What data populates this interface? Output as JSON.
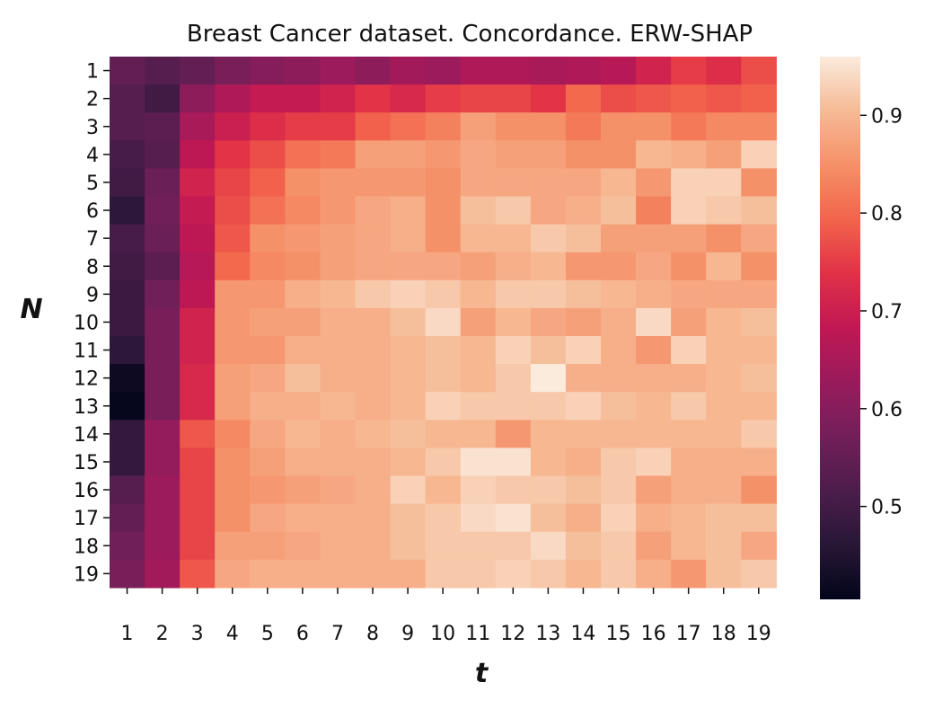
{
  "chart_data": {
    "type": "heatmap",
    "title": "Breast Cancer  dataset. Concordance.  ERW-SHAP",
    "xlabel": "t",
    "ylabel": "N",
    "x_categories": [
      "1",
      "2",
      "3",
      "4",
      "5",
      "6",
      "7",
      "8",
      "9",
      "10",
      "11",
      "12",
      "13",
      "14",
      "15",
      "16",
      "17",
      "18",
      "19"
    ],
    "y_categories": [
      "1",
      "2",
      "3",
      "4",
      "5",
      "6",
      "7",
      "8",
      "9",
      "10",
      "11",
      "12",
      "13",
      "14",
      "15",
      "16",
      "17",
      "18",
      "19"
    ],
    "colormap": "rocket",
    "colorbar": {
      "ticks": [
        0.5,
        0.6,
        0.7,
        0.8,
        0.9
      ],
      "tick_labels": [
        "0.5",
        "0.6",
        "0.7",
        "0.8",
        "0.9"
      ],
      "range": [
        0.405,
        0.96
      ]
    },
    "values": [
      [
        0.55,
        0.53,
        0.55,
        0.58,
        0.6,
        0.61,
        0.63,
        0.61,
        0.64,
        0.63,
        0.66,
        0.66,
        0.65,
        0.66,
        0.67,
        0.71,
        0.75,
        0.73,
        0.77
      ],
      [
        0.53,
        0.5,
        0.61,
        0.66,
        0.69,
        0.69,
        0.71,
        0.74,
        0.72,
        0.75,
        0.76,
        0.76,
        0.74,
        0.8,
        0.77,
        0.78,
        0.79,
        0.78,
        0.79
      ],
      [
        0.53,
        0.54,
        0.65,
        0.7,
        0.73,
        0.75,
        0.75,
        0.79,
        0.81,
        0.83,
        0.87,
        0.85,
        0.85,
        0.82,
        0.85,
        0.85,
        0.82,
        0.84,
        0.84
      ],
      [
        0.51,
        0.53,
        0.68,
        0.74,
        0.77,
        0.81,
        0.82,
        0.87,
        0.87,
        0.86,
        0.88,
        0.87,
        0.87,
        0.85,
        0.85,
        0.9,
        0.89,
        0.87,
        0.93
      ],
      [
        0.5,
        0.56,
        0.71,
        0.76,
        0.79,
        0.85,
        0.86,
        0.86,
        0.86,
        0.85,
        0.88,
        0.88,
        0.88,
        0.88,
        0.9,
        0.86,
        0.93,
        0.93,
        0.85
      ],
      [
        0.47,
        0.57,
        0.69,
        0.77,
        0.81,
        0.84,
        0.86,
        0.88,
        0.89,
        0.85,
        0.91,
        0.92,
        0.88,
        0.89,
        0.91,
        0.83,
        0.93,
        0.92,
        0.91
      ],
      [
        0.51,
        0.56,
        0.68,
        0.78,
        0.85,
        0.86,
        0.87,
        0.88,
        0.89,
        0.85,
        0.9,
        0.9,
        0.92,
        0.91,
        0.87,
        0.87,
        0.87,
        0.85,
        0.88
      ],
      [
        0.5,
        0.54,
        0.67,
        0.8,
        0.84,
        0.85,
        0.87,
        0.88,
        0.88,
        0.88,
        0.87,
        0.89,
        0.9,
        0.86,
        0.86,
        0.88,
        0.85,
        0.9,
        0.85
      ],
      [
        0.49,
        0.57,
        0.68,
        0.86,
        0.86,
        0.89,
        0.9,
        0.92,
        0.93,
        0.92,
        0.9,
        0.92,
        0.92,
        0.91,
        0.9,
        0.89,
        0.88,
        0.88,
        0.88
      ],
      [
        0.49,
        0.58,
        0.71,
        0.86,
        0.87,
        0.87,
        0.89,
        0.89,
        0.91,
        0.94,
        0.87,
        0.9,
        0.88,
        0.87,
        0.89,
        0.94,
        0.87,
        0.9,
        0.91
      ],
      [
        0.47,
        0.58,
        0.71,
        0.86,
        0.86,
        0.89,
        0.89,
        0.89,
        0.9,
        0.91,
        0.9,
        0.93,
        0.91,
        0.93,
        0.89,
        0.86,
        0.93,
        0.9,
        0.9
      ],
      [
        0.42,
        0.58,
        0.72,
        0.87,
        0.88,
        0.91,
        0.89,
        0.89,
        0.9,
        0.91,
        0.9,
        0.92,
        0.96,
        0.89,
        0.89,
        0.89,
        0.89,
        0.9,
        0.91
      ],
      [
        0.41,
        0.58,
        0.72,
        0.87,
        0.89,
        0.89,
        0.9,
        0.89,
        0.9,
        0.93,
        0.92,
        0.92,
        0.92,
        0.93,
        0.91,
        0.9,
        0.92,
        0.9,
        0.9
      ],
      [
        0.48,
        0.62,
        0.78,
        0.84,
        0.88,
        0.9,
        0.89,
        0.9,
        0.91,
        0.9,
        0.9,
        0.86,
        0.9,
        0.9,
        0.9,
        0.9,
        0.9,
        0.9,
        0.92
      ],
      [
        0.48,
        0.62,
        0.76,
        0.85,
        0.87,
        0.89,
        0.89,
        0.89,
        0.9,
        0.92,
        0.95,
        0.95,
        0.9,
        0.89,
        0.92,
        0.93,
        0.89,
        0.89,
        0.89
      ],
      [
        0.53,
        0.63,
        0.76,
        0.85,
        0.86,
        0.87,
        0.88,
        0.89,
        0.93,
        0.9,
        0.93,
        0.92,
        0.92,
        0.91,
        0.92,
        0.87,
        0.89,
        0.89,
        0.85
      ],
      [
        0.55,
        0.63,
        0.76,
        0.85,
        0.88,
        0.89,
        0.89,
        0.89,
        0.91,
        0.92,
        0.94,
        0.95,
        0.91,
        0.89,
        0.93,
        0.89,
        0.9,
        0.91,
        0.91
      ],
      [
        0.57,
        0.63,
        0.76,
        0.87,
        0.87,
        0.88,
        0.89,
        0.89,
        0.91,
        0.92,
        0.92,
        0.92,
        0.94,
        0.91,
        0.92,
        0.87,
        0.9,
        0.91,
        0.88
      ],
      [
        0.58,
        0.64,
        0.78,
        0.88,
        0.89,
        0.89,
        0.89,
        0.89,
        0.89,
        0.92,
        0.92,
        0.93,
        0.92,
        0.9,
        0.92,
        0.89,
        0.86,
        0.91,
        0.92
      ]
    ]
  }
}
